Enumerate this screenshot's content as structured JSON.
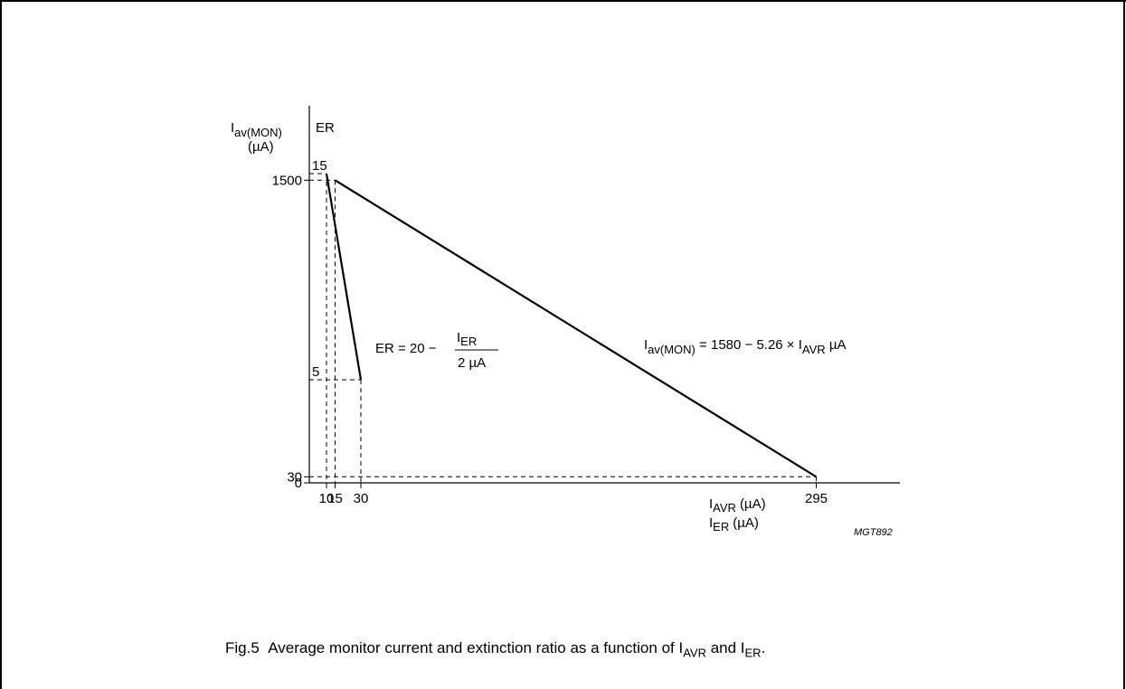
{
  "chart_data": {
    "type": "line",
    "title": "",
    "yaxis_primary": {
      "label_main": "I",
      "label_sub": "av(MON)",
      "label_unit": "(µA)",
      "ticks": [
        {
          "value": 1500,
          "label": "1500"
        },
        {
          "value": 30,
          "label": "30"
        },
        {
          "value": 0,
          "label": "0"
        }
      ],
      "ylim": [
        0,
        1580
      ]
    },
    "yaxis_secondary": {
      "label": "ER",
      "ticks": [
        {
          "value": 15,
          "label": "15"
        },
        {
          "value": 5,
          "label": "5"
        }
      ],
      "ylim": [
        0,
        15.8
      ]
    },
    "xaxis": {
      "label_line1_main": "I",
      "label_line1_sub": "AVR",
      "label_line1_unit": "(µA)",
      "label_line2_main": "I",
      "label_line2_sub": "ER",
      "label_line2_unit": "(µA)",
      "ticks": [
        {
          "value": 10,
          "label": "10"
        },
        {
          "value": 15,
          "label": "15"
        },
        {
          "value": 30,
          "label": "30"
        },
        {
          "value": 295,
          "label": "295"
        }
      ],
      "xlim": [
        0,
        340
      ]
    },
    "series": [
      {
        "formula_parts": {
          "lhs": "ER = 20 −",
          "num_main": "I",
          "num_sub": "ER",
          "den": "2 µA"
        },
        "axis": "ER",
        "x": [
          10,
          30
        ],
        "y": [
          15,
          5
        ]
      },
      {
        "formula_parts": {
          "main": "I",
          "sub1": "av(MON)",
          "mid": " = 1580 − 5.26 × I",
          "sub2": "AVR",
          "end": " µA"
        },
        "axis": "Iav(MON)",
        "x": [
          15,
          295
        ],
        "y": [
          1500,
          30
        ]
      }
    ],
    "grid": false,
    "drawing_code": "MGT892"
  },
  "caption": {
    "prefix": "Fig.5",
    "text": "Average monitor current and extinction ratio as a function of I",
    "sub1": "AVR",
    "mid": " and I",
    "sub2": "ER",
    "end": "."
  }
}
